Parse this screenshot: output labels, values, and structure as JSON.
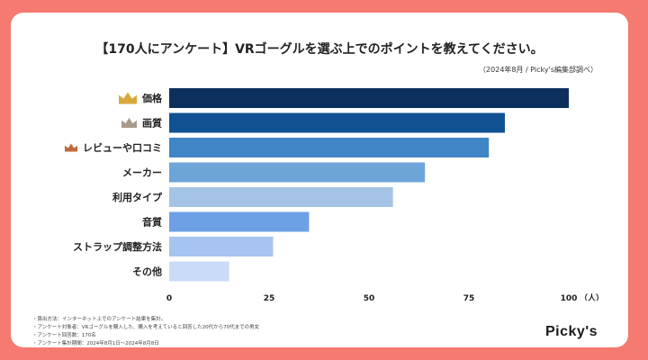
{
  "chart_data": {
    "type": "bar",
    "orientation": "horizontal",
    "title": "【170人にアンケート】VRゴーグルを選ぶ上でのポイントを教えてください。",
    "subtitle": "（2024年8月 / Picky's編集部調べ）",
    "categories": [
      "価格",
      "画質",
      "レビューや口コミ",
      "メーカー",
      "利用タイプ",
      "音質",
      "ストラップ調整方法",
      "その他"
    ],
    "values": [
      100,
      84,
      80,
      64,
      56,
      35,
      26,
      15
    ],
    "xlim": [
      0,
      100
    ],
    "xticks": [
      "0",
      "25",
      "50",
      "75",
      "100"
    ],
    "x_unit": "（人）",
    "grid": false,
    "bar_colors": [
      "#0d2f5e",
      "#0f5191",
      "#4085c5",
      "#6ea5d9",
      "#a5c4e5",
      "#6ea0e6",
      "#a6c4ef",
      "#cadcf5"
    ],
    "crowns": [
      {
        "rank": 1,
        "color": "#d9a83c"
      },
      {
        "rank": 2,
        "color": "#a89b8a"
      },
      {
        "rank": 3,
        "color": "#c06a3c"
      }
    ]
  },
  "footnotes": [
    "・算出方法：インターネット上でのアンケート結果を集計。",
    "・アンケート対象者：VRゴーグルを購入した、購入を考えていると回答した20代から70代までの男女",
    "・アンケート回答数：170名",
    "・アンケート集計期間：2024年8月1日〜2024年8月8日"
  ],
  "brand": "Picky's",
  "colors": {
    "background": "#f47a72",
    "card": "#ffffff"
  }
}
